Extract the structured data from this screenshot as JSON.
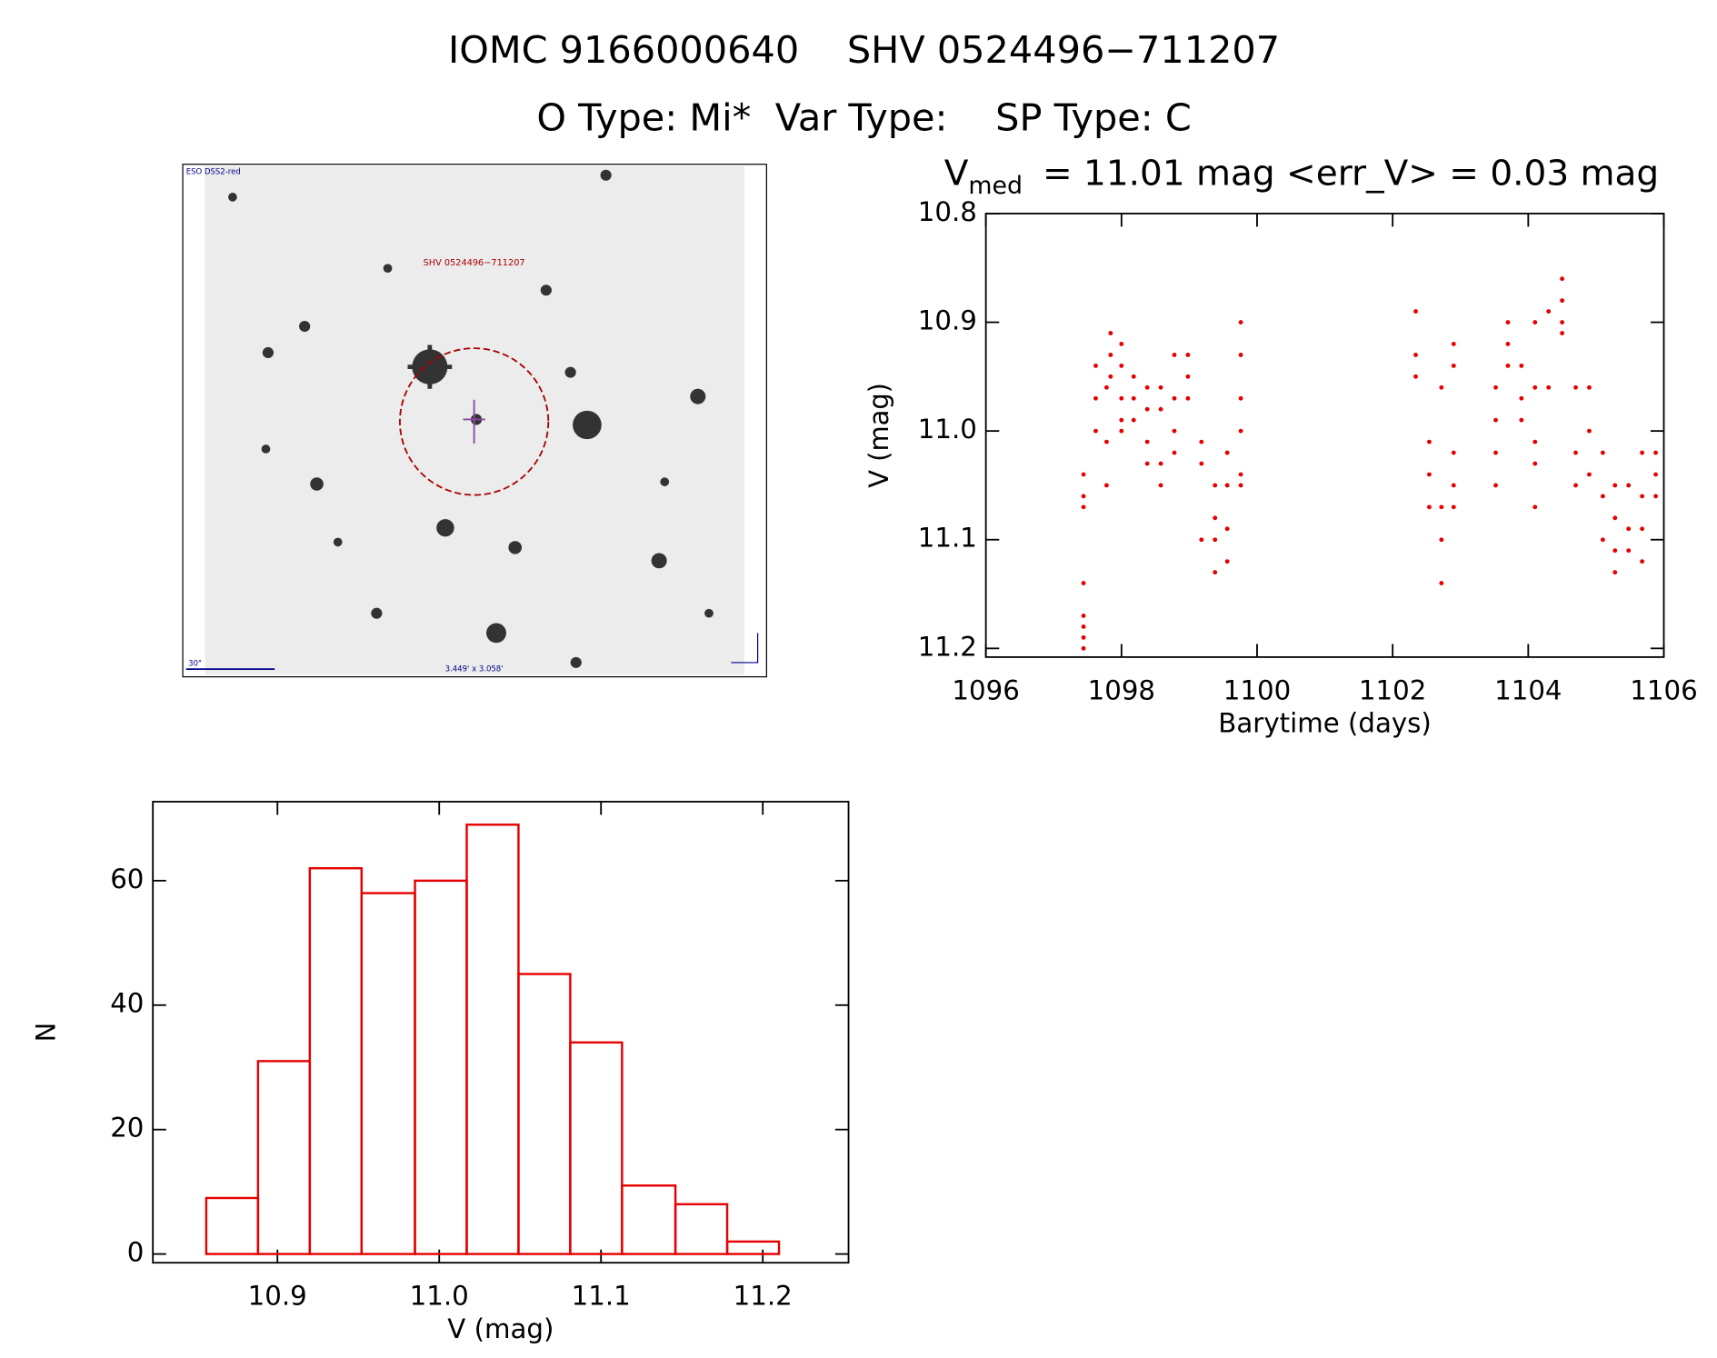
{
  "header": {
    "title": "IOMC 9166000640    SHV 0524496−711207",
    "subtitle": "O Type: Mi*  Var Type:    SP Type: C"
  },
  "image": {
    "survey": "ESO DSS2-red",
    "target": "SHV 0524496−711207",
    "scale": "30\"",
    "size": "3.449' x 3.058'"
  },
  "chart_data": [
    {
      "type": "scatter",
      "title": [
        "V",
        "med",
        "= 11.01 mag <err_V> = 0.03 mag"
      ],
      "xlabel": "Barytime (days)",
      "ylabel": "V (mag)",
      "xlim": [
        1096,
        1106
      ],
      "ylim": [
        10.8,
        11.208
      ],
      "y_inverted": true,
      "xticks": [
        1096,
        1098,
        1100,
        1102,
        1104,
        1106
      ],
      "yticks": [
        10.8,
        10.9,
        {
          "value": 11,
          "label": "11.0"
        },
        11.1,
        11.2
      ],
      "series": [
        {
          "color": "#e60000",
          "x": [
            1097.44,
            1097.44,
            1097.44,
            1097.44,
            1097.44,
            1097.44,
            1097.44,
            1097.44,
            1097.62,
            1097.62,
            1097.62,
            1097.78,
            1097.78,
            1097.78,
            1097.84,
            1097.84,
            1097.84,
            1098.0,
            1098.0,
            1098.0,
            1098.0,
            1098.0,
            1098.18,
            1098.18,
            1098.18,
            1098.38,
            1098.38,
            1098.38,
            1098.38,
            1098.58,
            1098.58,
            1098.58,
            1098.58,
            1098.78,
            1098.78,
            1098.78,
            1098.78,
            1098.98,
            1098.98,
            1098.98,
            1099.18,
            1099.18,
            1099.18,
            1099.38,
            1099.38,
            1099.38,
            1099.38,
            1099.56,
            1099.56,
            1099.56,
            1099.56,
            1099.76,
            1099.76,
            1099.76,
            1099.76,
            1099.76,
            1099.76,
            1102.34,
            1102.34,
            1102.34,
            1102.54,
            1102.54,
            1102.54,
            1102.72,
            1102.72,
            1102.72,
            1102.72,
            1102.9,
            1102.9,
            1102.9,
            1102.9,
            1102.9,
            1103.52,
            1103.52,
            1103.52,
            1103.52,
            1103.7,
            1103.7,
            1103.7,
            1103.9,
            1103.9,
            1103.9,
            1104.1,
            1104.1,
            1104.1,
            1104.1,
            1104.1,
            1104.3,
            1104.3,
            1104.5,
            1104.5,
            1104.5,
            1104.5,
            1104.7,
            1104.7,
            1104.7,
            1104.9,
            1104.9,
            1104.9,
            1105.1,
            1105.1,
            1105.1,
            1105.28,
            1105.28,
            1105.28,
            1105.28,
            1105.48,
            1105.48,
            1105.48,
            1105.68,
            1105.68,
            1105.68,
            1105.68,
            1105.88,
            1105.88,
            1105.88
          ],
          "values": [
            11.04,
            11.06,
            11.07,
            11.14,
            11.17,
            11.18,
            11.19,
            11.2,
            10.94,
            10.97,
            11.0,
            10.96,
            11.01,
            11.05,
            10.91,
            10.93,
            10.95,
            10.92,
            10.94,
            10.97,
            10.99,
            11.0,
            10.95,
            10.97,
            10.99,
            10.96,
            10.98,
            11.01,
            11.03,
            10.96,
            10.98,
            11.03,
            11.05,
            10.93,
            10.97,
            11.0,
            11.02,
            10.93,
            10.95,
            10.97,
            11.01,
            11.03,
            11.1,
            11.05,
            11.08,
            11.1,
            11.13,
            11.02,
            11.05,
            11.09,
            11.12,
            10.9,
            10.93,
            10.97,
            11.0,
            11.04,
            11.05,
            10.89,
            10.93,
            10.95,
            11.01,
            11.04,
            11.07,
            10.96,
            11.07,
            11.1,
            11.14,
            10.92,
            10.94,
            11.02,
            11.05,
            11.07,
            10.96,
            10.99,
            11.02,
            11.05,
            10.9,
            10.92,
            10.94,
            10.94,
            10.97,
            10.99,
            10.9,
            10.96,
            11.01,
            11.03,
            11.07,
            10.89,
            10.96,
            10.86,
            10.88,
            10.9,
            10.91,
            10.96,
            11.02,
            11.05,
            10.96,
            11.0,
            11.04,
            11.02,
            11.06,
            11.1,
            11.05,
            11.08,
            11.11,
            11.13,
            11.05,
            11.09,
            11.11,
            11.02,
            11.06,
            11.09,
            11.12,
            11.02,
            11.04,
            11.06
          ]
        }
      ]
    },
    {
      "type": "histogram",
      "xlabel": "V (mag)",
      "ylabel": "N",
      "color": "#e60000",
      "xlim": [
        10.823,
        11.253
      ],
      "ylim": [
        -1.4,
        72.7
      ],
      "xticks": [
        10.9,
        {
          "value": 11,
          "label": "11.0"
        },
        11.1,
        11.2
      ],
      "yticks": [
        0,
        20,
        40,
        60
      ],
      "bins": [
        10.856,
        10.888,
        10.92,
        10.952,
        10.985,
        11.017,
        11.049,
        11.081,
        11.113,
        11.146,
        11.178,
        11.21
      ],
      "counts": [
        9,
        31,
        62,
        58,
        60,
        69,
        45,
        34,
        11,
        8,
        2
      ]
    }
  ]
}
